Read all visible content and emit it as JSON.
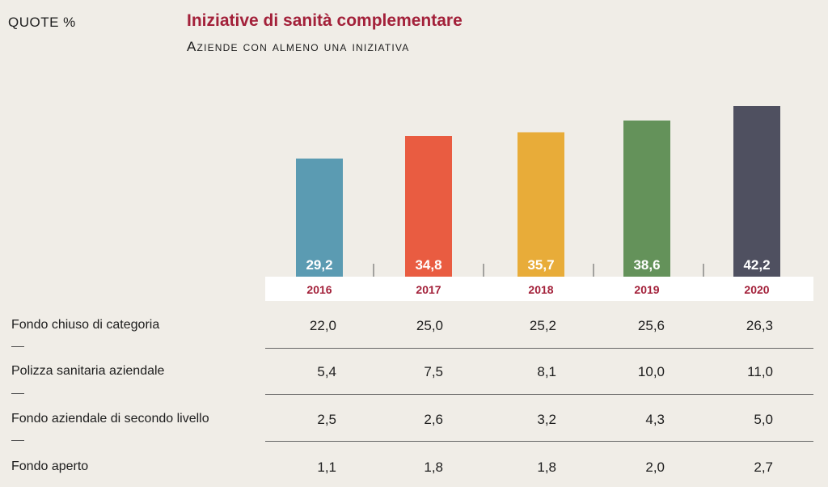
{
  "header": {
    "unit_label": "QUOTE %",
    "title": "Iniziative di sanità complementare",
    "subtitle": "Aziende con almeno una iniziativa"
  },
  "colors": {
    "title": "#a3213a",
    "year_labels": "#a3213a",
    "bars": [
      "#5b9bb2",
      "#e95c41",
      "#e8ac39",
      "#64925a",
      "#4f5060"
    ]
  },
  "chart_data": {
    "type": "bar",
    "categories": [
      "2016",
      "2017",
      "2018",
      "2019",
      "2020"
    ],
    "values": [
      29.2,
      34.8,
      35.7,
      38.6,
      42.2
    ],
    "value_labels": [
      "29,2",
      "34,8",
      "35,7",
      "38,6",
      "42,2"
    ],
    "title": "Iniziative di sanità complementare",
    "subtitle": "Aziende con almeno una iniziativa",
    "ylabel": "QUOTE %",
    "ylim": [
      0,
      42.2
    ],
    "grid": false,
    "legend": "none"
  },
  "table": {
    "rows": [
      {
        "label": "Fondo chiuso di categoria",
        "values": [
          "22,0",
          "25,0",
          "25,2",
          "25,6",
          "26,3"
        ]
      },
      {
        "label": "Polizza sanitaria aziendale",
        "values": [
          "5,4",
          "7,5",
          "8,1",
          "10,0",
          "11,0"
        ]
      },
      {
        "label": "Fondo aziendale di secondo livello",
        "values": [
          "2,5",
          "2,6",
          "3,2",
          "4,3",
          "5,0"
        ]
      },
      {
        "label": "Fondo aperto",
        "values": [
          "1,1",
          "1,8",
          "1,8",
          "2,0",
          "2,7"
        ]
      }
    ]
  }
}
